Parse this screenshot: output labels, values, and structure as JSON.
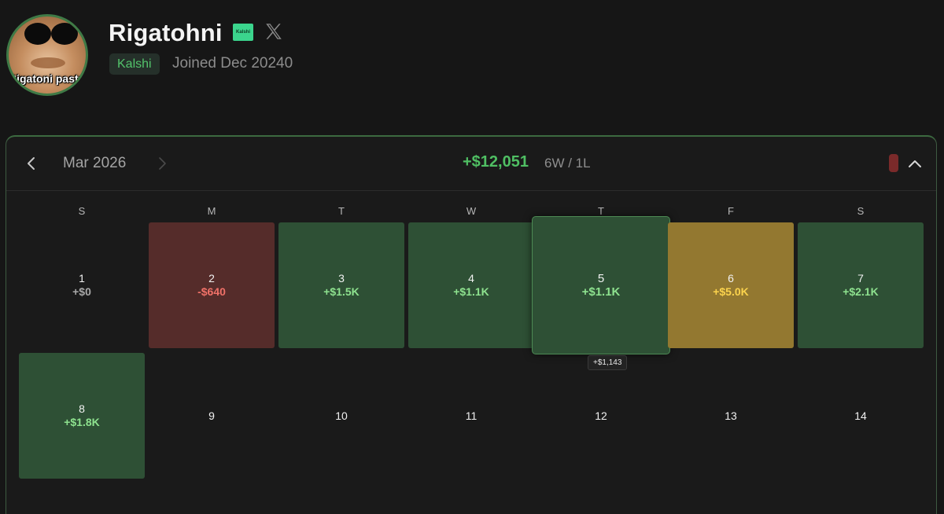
{
  "profile": {
    "username": "Rigatohni",
    "platform_badge": "Kalshi",
    "platform_logo_text": "Kalshi",
    "joined": "Joined Dec 20240",
    "avatar_caption": "Rigatoni pasta"
  },
  "calendar": {
    "month": "Mar 2026",
    "total_pnl": "+$12,051",
    "record": "6W / 1L",
    "swatch_color": "#7a2a2a",
    "weekdays": [
      "S",
      "M",
      "T",
      "W",
      "T",
      "F",
      "S"
    ],
    "days": [
      {
        "day": "1",
        "value": "+$0",
        "status": "neutral"
      },
      {
        "day": "2",
        "value": "-$640",
        "status": "loss"
      },
      {
        "day": "3",
        "value": "+$1.5K",
        "status": "win"
      },
      {
        "day": "4",
        "value": "+$1.1K",
        "status": "win"
      },
      {
        "day": "5",
        "value": "+$1.1K",
        "status": "win-hovered"
      },
      {
        "day": "6",
        "value": "+$5.0K",
        "status": "best"
      },
      {
        "day": "7",
        "value": "+$2.1K",
        "status": "win"
      },
      {
        "day": "8",
        "value": "+$1.8K",
        "status": "win"
      },
      {
        "day": "9",
        "value": "",
        "status": "empty"
      },
      {
        "day": "10",
        "value": "",
        "status": "empty"
      },
      {
        "day": "11",
        "value": "",
        "status": "empty"
      },
      {
        "day": "12",
        "value": "",
        "status": "empty"
      },
      {
        "day": "13",
        "value": "",
        "status": "empty"
      },
      {
        "day": "14",
        "value": "",
        "status": "empty"
      }
    ],
    "tooltip": "+$1,143"
  },
  "colors": {
    "win": "#2e5035",
    "loss": "#552c2a",
    "best": "#937830",
    "accent": "#4fbf63"
  }
}
